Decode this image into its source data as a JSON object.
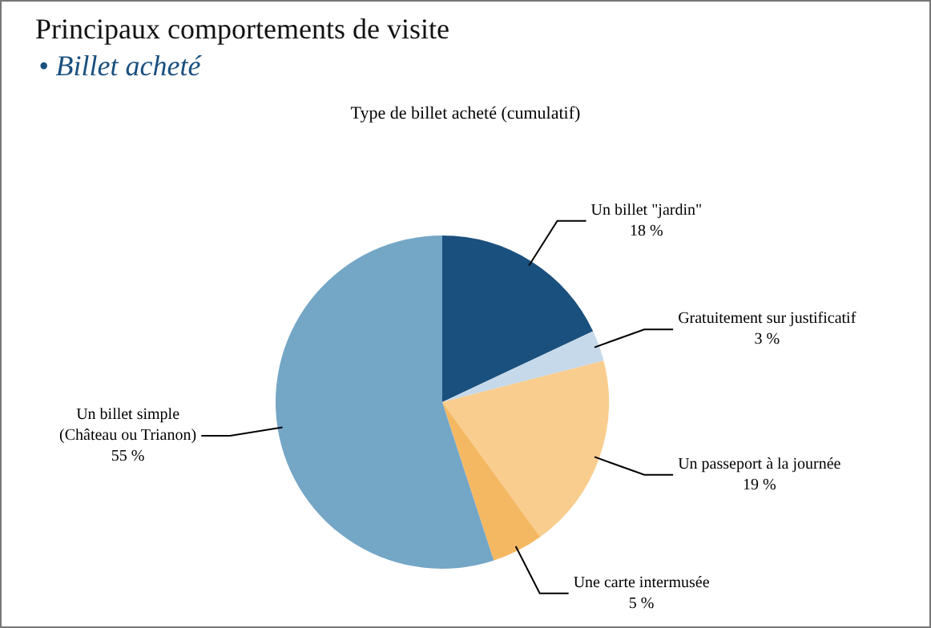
{
  "chart_data": {
    "type": "pie",
    "title": "Principaux comportements de visite",
    "subtitle": "• Billet acheté",
    "annotations": [
      "Type de billet acheté (cumulatif)"
    ],
    "categories": [
      "Un billet \"jardin\"",
      "Gratuitement sur justificatif",
      "Un passeport à la journée",
      "Une carte intermusée",
      "Un billet simple (Château ou Trianon)"
    ],
    "values": [
      18,
      3,
      19,
      5,
      55
    ],
    "value_labels": [
      "18 %",
      "3 %",
      "19 %",
      "5 %",
      "55 %"
    ],
    "colors": [
      "#1a507e",
      "#c5d9ea",
      "#f9cd8e",
      "#f5b862",
      "#74a6c6"
    ],
    "legend": false
  }
}
